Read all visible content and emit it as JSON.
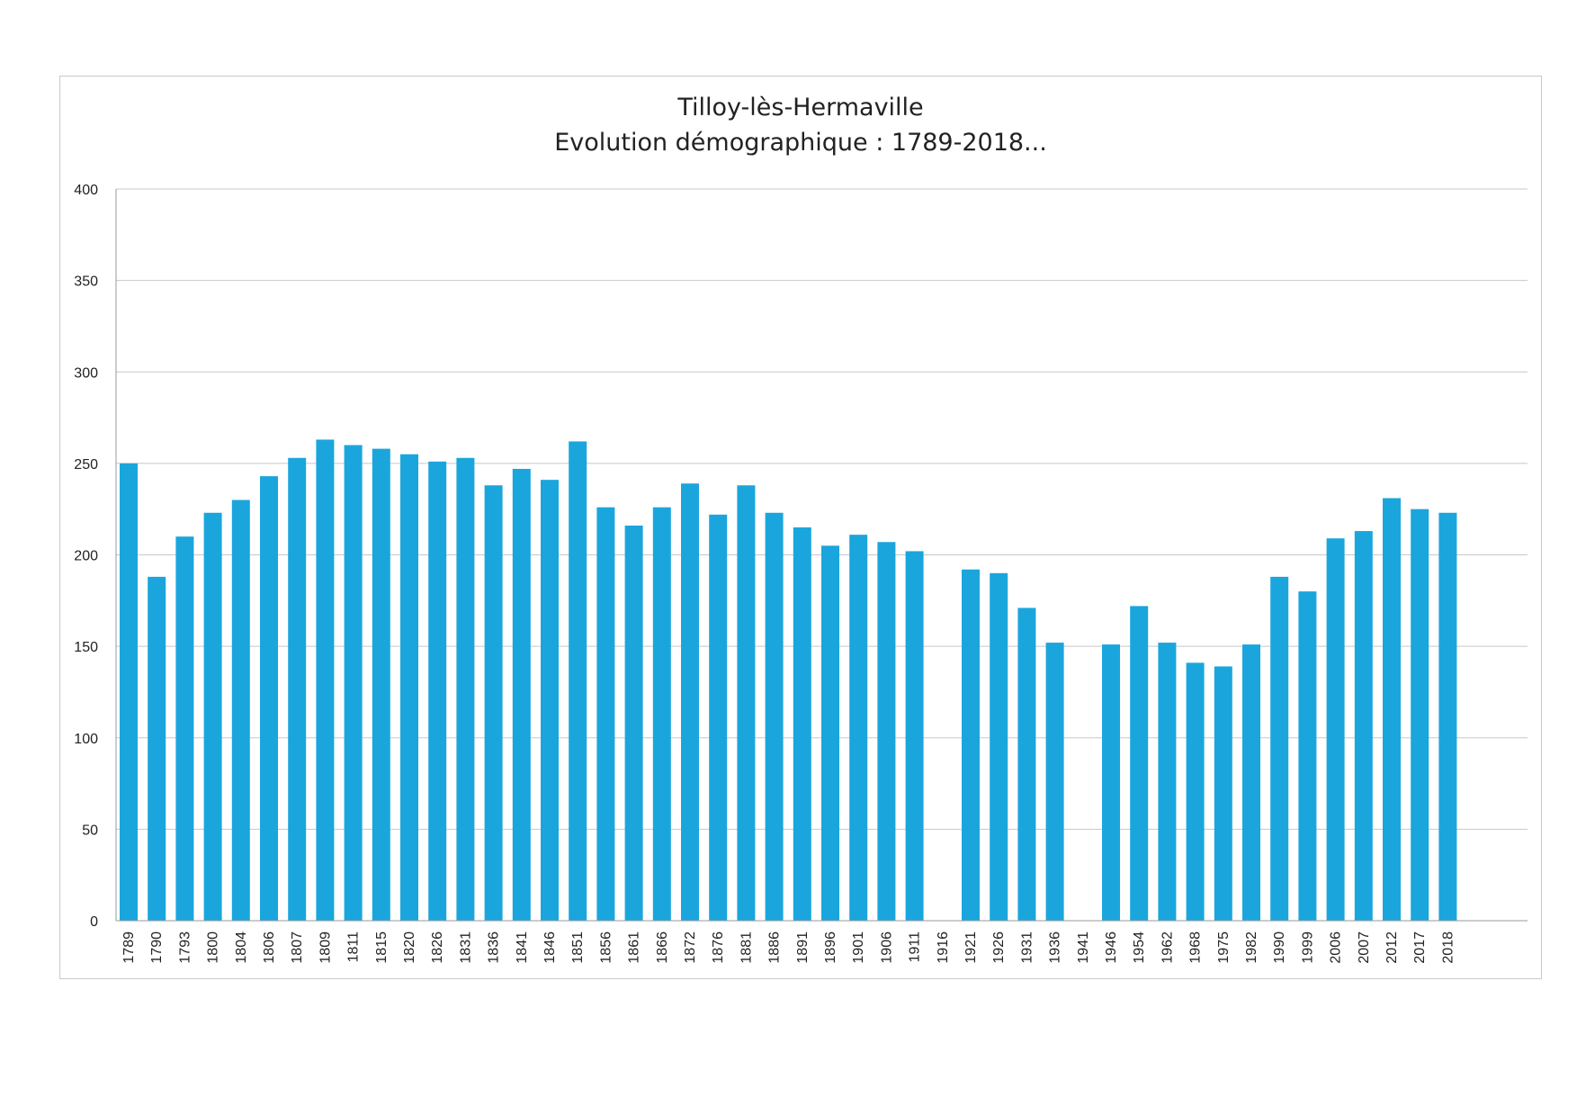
{
  "chart_data": {
    "type": "bar",
    "title": [
      "Tilloy-lès-Hermaville",
      "Evolution démographique : 1789-2018..."
    ],
    "xlabel": "",
    "ylabel": "",
    "ylim": [
      0,
      400
    ],
    "yticks": [
      0,
      50,
      100,
      150,
      200,
      250,
      300,
      350,
      400
    ],
    "grid": true,
    "legend": "none",
    "bar_color": "#1aa6dd",
    "categories": [
      "1789",
      "1790",
      "1793",
      "1800",
      "1804",
      "1806",
      "1807",
      "1809",
      "1811",
      "1815",
      "1820",
      "1826",
      "1831",
      "1836",
      "1841",
      "1846",
      "1851",
      "1856",
      "1861",
      "1866",
      "1872",
      "1876",
      "1881",
      "1886",
      "1891",
      "1896",
      "1901",
      "1906",
      "1911",
      "1916",
      "1921",
      "1926",
      "1931",
      "1936",
      "1941",
      "1946",
      "1954",
      "1962",
      "1968",
      "1975",
      "1982",
      "1990",
      "1999",
      "2006",
      "2007",
      "2012",
      "2017",
      "2018"
    ],
    "values": [
      250,
      188,
      210,
      223,
      230,
      243,
      253,
      263,
      260,
      258,
      255,
      251,
      253,
      238,
      247,
      241,
      262,
      226,
      216,
      226,
      239,
      222,
      238,
      223,
      215,
      205,
      211,
      207,
      202,
      null,
      192,
      190,
      171,
      152,
      null,
      151,
      172,
      152,
      141,
      139,
      151,
      188,
      180,
      209,
      213,
      231,
      225,
      223
    ]
  }
}
